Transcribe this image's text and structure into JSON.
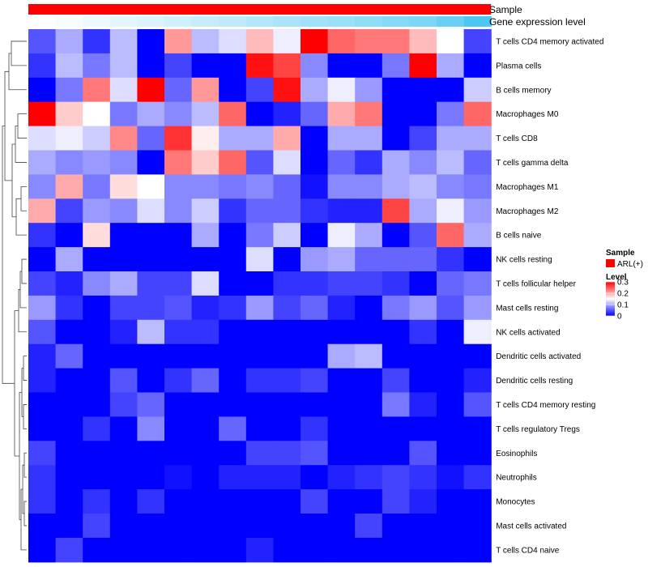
{
  "chart_data": {
    "type": "heatmap",
    "rows": [
      "T cells CD4 memory activated",
      "Plasma cells",
      "B cells memory",
      "Macrophages M0",
      "T cells CD8",
      "T cells gamma delta",
      "Macrophages M1",
      "Macrophages M2",
      "B cells naive",
      "NK cells resting",
      "T cells follicular helper",
      "Mast cells resting",
      "NK cells activated",
      "Dendritic cells activated",
      "Dendritic cells resting",
      "T cells CD4 memory resting",
      "T cells regulatory  Tregs",
      "Eosinophils",
      "Neutrophils",
      "Monocytes",
      "Mast cells activated",
      "T cells CD4 naive"
    ],
    "values": [
      [
        0.05,
        0.1,
        0.03,
        0.11,
        0.0,
        0.21,
        0.11,
        0.13,
        0.19,
        0.14,
        0.3,
        0.24,
        0.23,
        0.23,
        0.19,
        0.15,
        0.04
      ],
      [
        0.03,
        0.11,
        0.07,
        0.11,
        0.0,
        0.04,
        0.0,
        0.0,
        0.29,
        0.26,
        0.08,
        0.0,
        0.0,
        0.07,
        0.3,
        0.1,
        0.0
      ],
      [
        0.0,
        0.07,
        0.23,
        0.13,
        0.3,
        0.06,
        0.21,
        0.0,
        0.04,
        0.29,
        0.1,
        0.14,
        0.09,
        0.0,
        0.0,
        0.0,
        0.12
      ],
      [
        0.3,
        0.18,
        0.15,
        0.07,
        0.1,
        0.08,
        0.11,
        0.24,
        0.0,
        0.02,
        0.06,
        0.2,
        0.23,
        0.0,
        0.0,
        0.07,
        0.24
      ],
      [
        0.13,
        0.14,
        0.12,
        0.22,
        0.06,
        0.27,
        0.16,
        0.1,
        0.1,
        0.2,
        0.0,
        0.1,
        0.1,
        0.0,
        0.04,
        0.1,
        0.1
      ],
      [
        0.1,
        0.08,
        0.09,
        0.08,
        0.0,
        0.23,
        0.18,
        0.24,
        0.05,
        0.13,
        0.0,
        0.06,
        0.03,
        0.1,
        0.08,
        0.11,
        0.06
      ],
      [
        0.08,
        0.2,
        0.07,
        0.17,
        0.15,
        0.08,
        0.08,
        0.07,
        0.08,
        0.06,
        0.01,
        0.08,
        0.08,
        0.1,
        0.11,
        0.08,
        0.07
      ],
      [
        0.2,
        0.04,
        0.09,
        0.08,
        0.13,
        0.08,
        0.12,
        0.03,
        0.06,
        0.06,
        0.03,
        0.02,
        0.02,
        0.26,
        0.1,
        0.14,
        0.09
      ],
      [
        0.03,
        0.0,
        0.17,
        0.0,
        0.0,
        0.0,
        0.1,
        0.0,
        0.07,
        0.12,
        0.0,
        0.14,
        0.1,
        0.0,
        0.05,
        0.24,
        0.1
      ],
      [
        0.0,
        0.1,
        0.0,
        0.0,
        0.0,
        0.0,
        0.0,
        0.0,
        0.13,
        0.0,
        0.09,
        0.1,
        0.06,
        0.06,
        0.06,
        0.03,
        0.0
      ],
      [
        0.04,
        0.02,
        0.08,
        0.1,
        0.04,
        0.04,
        0.13,
        0.0,
        0.0,
        0.03,
        0.03,
        0.04,
        0.04,
        0.03,
        0.0,
        0.06,
        0.07
      ],
      [
        0.09,
        0.03,
        0.0,
        0.04,
        0.04,
        0.05,
        0.02,
        0.03,
        0.09,
        0.04,
        0.06,
        0.02,
        0.0,
        0.07,
        0.09,
        0.05,
        0.09
      ],
      [
        0.05,
        0.0,
        0.0,
        0.02,
        0.11,
        0.03,
        0.03,
        0.0,
        0.0,
        0.0,
        0.0,
        0.0,
        0.0,
        0.0,
        0.03,
        0.0,
        0.14
      ],
      [
        0.02,
        0.06,
        0.0,
        0.0,
        0.0,
        0.0,
        0.0,
        0.0,
        0.0,
        0.0,
        0.0,
        0.1,
        0.11,
        0.0,
        0.0,
        0.0,
        0.0
      ],
      [
        0.02,
        0.0,
        0.0,
        0.05,
        0.0,
        0.03,
        0.06,
        0.0,
        0.03,
        0.03,
        0.04,
        0.0,
        0.0,
        0.04,
        0.0,
        0.0,
        0.02
      ],
      [
        0.0,
        0.0,
        0.0,
        0.04,
        0.06,
        0.0,
        0.0,
        0.0,
        0.0,
        0.0,
        0.0,
        0.0,
        0.0,
        0.07,
        0.02,
        0.0,
        0.05
      ],
      [
        0.0,
        0.0,
        0.03,
        0.0,
        0.08,
        0.0,
        0.0,
        0.06,
        0.0,
        0.0,
        0.03,
        0.0,
        0.0,
        0.0,
        0.0,
        0.0,
        0.0
      ],
      [
        0.04,
        0.0,
        0.0,
        0.0,
        0.0,
        0.0,
        0.0,
        0.0,
        0.04,
        0.04,
        0.05,
        0.0,
        0.0,
        0.0,
        0.05,
        0.0,
        0.0
      ],
      [
        0.03,
        0.0,
        0.0,
        0.0,
        0.0,
        0.01,
        0.0,
        0.02,
        0.02,
        0.02,
        0.0,
        0.02,
        0.03,
        0.04,
        0.03,
        0.01,
        0.03
      ],
      [
        0.03,
        0.0,
        0.03,
        0.0,
        0.03,
        0.0,
        0.0,
        0.0,
        0.0,
        0.0,
        0.04,
        0.0,
        0.0,
        0.04,
        0.02,
        0.0,
        0.0
      ],
      [
        0.0,
        0.0,
        0.04,
        0.0,
        0.0,
        0.0,
        0.0,
        0.0,
        0.0,
        0.0,
        0.0,
        0.0,
        0.04,
        0.0,
        0.0,
        0.0,
        0.0
      ],
      [
        0.0,
        0.04,
        0.0,
        0.0,
        0.0,
        0.0,
        0.0,
        0.0,
        0.02,
        0.0,
        0.0,
        0.0,
        0.0,
        0.0,
        0.0,
        0.0,
        0.0
      ]
    ],
    "column_annotations": {
      "sample": {
        "label": "Sample",
        "color": "#ff0000"
      },
      "gene_expression": {
        "label": "Gene expression level",
        "low_color": "#ffffff",
        "high_color": "#44c4f0",
        "values": [
          0.0,
          0.05,
          0.1,
          0.15,
          0.2,
          0.25,
          0.3,
          0.35,
          0.4,
          0.45,
          0.5,
          0.55,
          0.6,
          0.65,
          0.7,
          0.8,
          0.95
        ]
      }
    },
    "legend": {
      "position": "right",
      "sample_title": "Sample",
      "sample_entry": "ARL(+)",
      "level_title": "Level",
      "ticks": [
        "0.3",
        "0.2",
        "0.1",
        "0"
      ],
      "range": [
        0,
        0.3
      ]
    },
    "colors": {
      "low": "#0000ff",
      "mid": "#ffffff",
      "high": "#ff0000"
    },
    "row_dendrogram": true
  }
}
